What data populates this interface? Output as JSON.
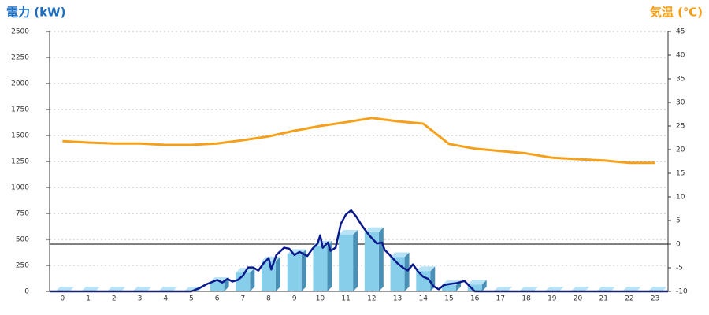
{
  "chart_data": {
    "type": "combo",
    "y_title": "電力 (kW)",
    "y2_title": "気温 (℃)",
    "categories": [
      "0",
      "1",
      "2",
      "3",
      "4",
      "5",
      "6",
      "7",
      "8",
      "9",
      "10",
      "11",
      "12",
      "13",
      "14",
      "15",
      "16",
      "17",
      "18",
      "19",
      "20",
      "21",
      "22",
      "23"
    ],
    "ylim": [
      0,
      2500
    ],
    "yticks": [
      0,
      250,
      500,
      750,
      1000,
      1250,
      1500,
      1750,
      2000,
      2250,
      2500
    ],
    "y2lim": [
      -10,
      45
    ],
    "y2ticks": [
      -10,
      -5,
      0,
      5,
      10,
      15,
      20,
      25,
      30,
      35,
      40,
      45
    ],
    "xlim": [
      -0.5,
      23.5
    ],
    "grid": true,
    "series": [
      {
        "type": "bar",
        "color": "#87ceeb",
        "values": [
          0,
          0,
          0,
          0,
          0,
          0,
          90,
          180,
          290,
          360,
          440,
          545,
          570,
          330,
          195,
          60,
          65,
          0,
          0,
          0,
          0,
          0,
          0,
          0
        ]
      },
      {
        "type": "line",
        "axis": "y2",
        "color": "#f5a01a",
        "values": [
          21.8,
          21.5,
          21.3,
          21.3,
          21,
          21,
          21.3,
          22,
          22.8,
          24,
          25,
          25.8,
          26.7,
          26,
          25.5,
          21.2,
          20.2,
          19.7,
          19.2,
          18.3,
          18,
          17.7,
          17.2,
          17.2
        ]
      },
      {
        "type": "line",
        "color": "#0a1a8c",
        "x": [
          -0.5,
          5.0,
          5.3,
          5.6,
          5.8,
          6.0,
          6.2,
          6.4,
          6.6,
          6.8,
          7.0,
          7.2,
          7.4,
          7.6,
          7.8,
          8.0,
          8.1,
          8.3,
          8.6,
          8.8,
          9.0,
          9.2,
          9.5,
          9.7,
          9.9,
          10.0,
          10.1,
          10.3,
          10.4,
          10.6,
          10.8,
          11.0,
          11.2,
          11.4,
          11.6,
          11.9,
          12.2,
          12.4,
          12.5,
          12.7,
          13.0,
          13.2,
          13.4,
          13.6,
          13.8,
          14.0,
          14.2,
          14.4,
          14.6,
          14.8,
          15.0,
          15.3,
          15.6,
          15.8,
          16.0,
          23.5
        ],
        "values": [
          0,
          0,
          30,
          70,
          90,
          110,
          85,
          120,
          95,
          110,
          150,
          230,
          230,
          200,
          270,
          320,
          210,
          350,
          420,
          410,
          350,
          380,
          340,
          410,
          460,
          540,
          420,
          470,
          390,
          420,
          650,
          740,
          780,
          720,
          640,
          540,
          460,
          470,
          400,
          350,
          270,
          230,
          200,
          260,
          190,
          140,
          120,
          50,
          20,
          60,
          70,
          80,
          100,
          50,
          0,
          0
        ]
      }
    ]
  }
}
